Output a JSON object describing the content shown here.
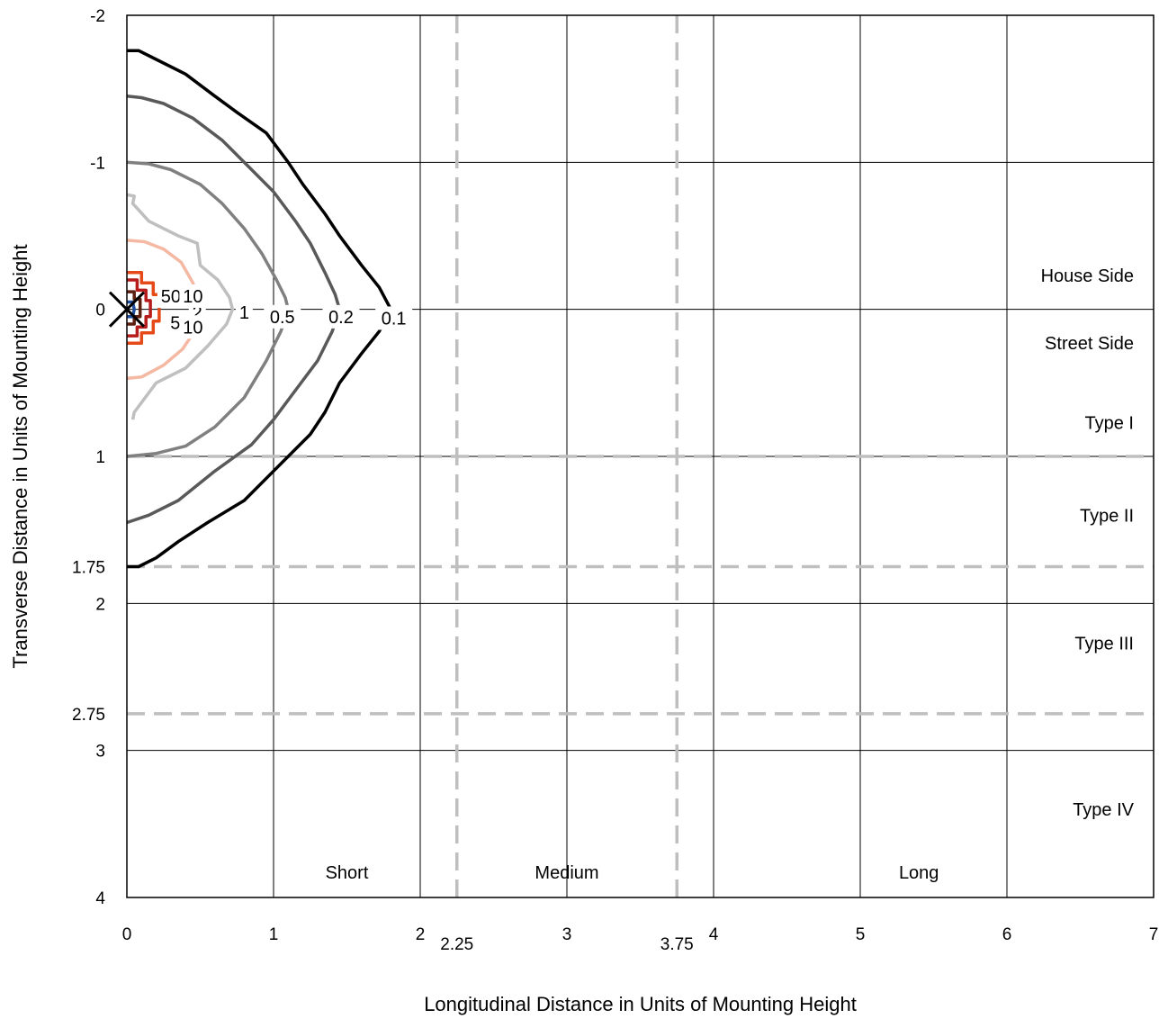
{
  "chart_data": {
    "type": "contour",
    "xlabel": "Longitudinal Distance in Units of Mounting Height",
    "ylabel": "Transverse Distance in Units of Mounting Height",
    "xlim": [
      0,
      7
    ],
    "ylim": [
      -2,
      4
    ],
    "y_inverted": true,
    "grid": true,
    "x_ticks": [
      "0",
      "1",
      "2",
      "3",
      "4",
      "5",
      "6",
      "7"
    ],
    "y_ticks": [
      {
        "value": -2,
        "label": "-2"
      },
      {
        "value": -1,
        "label": "-1"
      },
      {
        "value": 0,
        "label": "0"
      },
      {
        "value": 1,
        "label": "1"
      },
      {
        "value": 1.75,
        "label": "1.75"
      },
      {
        "value": 2,
        "label": "2"
      },
      {
        "value": 2.75,
        "label": "2.75"
      },
      {
        "value": 3,
        "label": "3"
      },
      {
        "value": 4,
        "label": "4"
      }
    ],
    "extra_x_ticks": [
      {
        "value": 2.25,
        "label": "2.25"
      },
      {
        "value": 3.75,
        "label": "3.75"
      }
    ],
    "reference_lines": {
      "vertical": [
        2.25,
        3.75
      ],
      "horizontal": [
        1,
        1.75,
        2.75
      ],
      "color": "#bfbfbf"
    },
    "luminaire_marker": {
      "x": 0,
      "y": 0
    },
    "region_labels": {
      "transverse": [
        {
          "label": "House Side",
          "y": -0.23
        },
        {
          "label": "Street Side",
          "y": 0.23
        },
        {
          "label": "Type I",
          "y": 0.77
        },
        {
          "label": "Type II",
          "y": 1.4
        },
        {
          "label": "Type III",
          "y": 2.27
        },
        {
          "label": "Type IV",
          "y": 3.4
        }
      ],
      "longitudinal": [
        {
          "label": "Short",
          "x": 1.5
        },
        {
          "label": "Medium",
          "x": 3.0
        },
        {
          "label": "Long",
          "x": 5.4
        }
      ]
    },
    "contours": [
      {
        "label": "0.1",
        "color": "#000000",
        "extent_x": 1.8,
        "points": [
          [
            0,
            -1.76
          ],
          [
            0.08,
            -1.76
          ],
          [
            0.2,
            -1.7
          ],
          [
            0.4,
            -1.6
          ],
          [
            0.6,
            -1.45
          ],
          [
            0.75,
            -1.34
          ],
          [
            0.95,
            -1.2
          ],
          [
            1.1,
            -1.0
          ],
          [
            1.2,
            -0.85
          ],
          [
            1.35,
            -0.65
          ],
          [
            1.45,
            -0.5
          ],
          [
            1.6,
            -0.3
          ],
          [
            1.72,
            -0.15
          ],
          [
            1.8,
            0
          ],
          [
            1.72,
            0.15
          ],
          [
            1.6,
            0.3
          ],
          [
            1.45,
            0.5
          ],
          [
            1.35,
            0.7
          ],
          [
            1.25,
            0.85
          ],
          [
            1.0,
            1.1
          ],
          [
            0.8,
            1.3
          ],
          [
            0.55,
            1.45
          ],
          [
            0.35,
            1.58
          ],
          [
            0.2,
            1.69
          ],
          [
            0.08,
            1.75
          ],
          [
            0,
            1.75
          ]
        ]
      },
      {
        "label": "0.2",
        "color": "#595959",
        "extent_x": 1.45,
        "points": [
          [
            0,
            -1.45
          ],
          [
            0.1,
            -1.44
          ],
          [
            0.25,
            -1.4
          ],
          [
            0.45,
            -1.3
          ],
          [
            0.65,
            -1.15
          ],
          [
            0.85,
            -0.95
          ],
          [
            1.0,
            -0.8
          ],
          [
            1.15,
            -0.6
          ],
          [
            1.25,
            -0.45
          ],
          [
            1.35,
            -0.25
          ],
          [
            1.42,
            -0.1
          ],
          [
            1.45,
            0
          ],
          [
            1.4,
            0.15
          ],
          [
            1.3,
            0.35
          ],
          [
            1.15,
            0.55
          ],
          [
            1.0,
            0.75
          ],
          [
            0.85,
            0.92
          ],
          [
            0.6,
            1.1
          ],
          [
            0.35,
            1.3
          ],
          [
            0.15,
            1.4
          ],
          [
            0,
            1.45
          ]
        ]
      },
      {
        "label": "0.5",
        "color": "#808080",
        "extent_x": 1.1,
        "points": [
          [
            0,
            -1.0
          ],
          [
            0.15,
            -0.99
          ],
          [
            0.3,
            -0.95
          ],
          [
            0.5,
            -0.85
          ],
          [
            0.65,
            -0.72
          ],
          [
            0.8,
            -0.55
          ],
          [
            0.92,
            -0.38
          ],
          [
            1.02,
            -0.2
          ],
          [
            1.08,
            -0.08
          ],
          [
            1.1,
            0
          ],
          [
            1.05,
            0.15
          ],
          [
            0.95,
            0.35
          ],
          [
            0.8,
            0.6
          ],
          [
            0.6,
            0.8
          ],
          [
            0.4,
            0.93
          ],
          [
            0.2,
            0.98
          ],
          [
            0,
            1.0
          ]
        ]
      },
      {
        "label": "1",
        "color": "#bfbfbf",
        "extent_x": 0.72,
        "points": [
          [
            0,
            -0.78
          ],
          [
            0.05,
            -0.77
          ],
          [
            0.04,
            -0.72
          ],
          [
            0.15,
            -0.6
          ],
          [
            0.35,
            -0.5
          ],
          [
            0.48,
            -0.45
          ],
          [
            0.5,
            -0.3
          ],
          [
            0.62,
            -0.2
          ],
          [
            0.7,
            -0.08
          ],
          [
            0.72,
            0
          ],
          [
            0.68,
            0.1
          ],
          [
            0.55,
            0.25
          ],
          [
            0.4,
            0.4
          ],
          [
            0.2,
            0.5
          ],
          [
            0.05,
            0.7
          ],
          [
            0.04,
            0.75
          ]
        ]
      },
      {
        "label": "2",
        "color": "#f4b8a3",
        "extent_x": 0.5,
        "points": [
          [
            0,
            -0.47
          ],
          [
            0.12,
            -0.46
          ],
          [
            0.25,
            -0.41
          ],
          [
            0.37,
            -0.32
          ],
          [
            0.45,
            -0.18
          ],
          [
            0.49,
            -0.07
          ],
          [
            0.5,
            0
          ],
          [
            0.46,
            0.15
          ],
          [
            0.38,
            0.27
          ],
          [
            0.25,
            0.38
          ],
          [
            0.1,
            0.46
          ],
          [
            0,
            0.47
          ]
        ]
      },
      {
        "label": "5",
        "color": "#e64a19",
        "extent_x": 0.22,
        "points": [
          [
            0,
            -0.25
          ],
          [
            0.1,
            -0.25
          ],
          [
            0.1,
            -0.18
          ],
          [
            0.18,
            -0.18
          ],
          [
            0.18,
            -0.1
          ],
          [
            0.22,
            -0.1
          ],
          [
            0.22,
            0.08
          ],
          [
            0.18,
            0.08
          ],
          [
            0.18,
            0.16
          ],
          [
            0.1,
            0.16
          ],
          [
            0.1,
            0.23
          ],
          [
            0,
            0.23
          ]
        ]
      },
      {
        "label": "10",
        "color": "#b71c1c",
        "extent_x": 0.16,
        "points": [
          [
            0,
            -0.2
          ],
          [
            0.07,
            -0.2
          ],
          [
            0.07,
            -0.13
          ],
          [
            0.13,
            -0.13
          ],
          [
            0.13,
            -0.06
          ],
          [
            0.16,
            -0.06
          ],
          [
            0.16,
            0.05
          ],
          [
            0.13,
            0.05
          ],
          [
            0.13,
            0.12
          ],
          [
            0.07,
            0.12
          ],
          [
            0.07,
            0.18
          ],
          [
            0,
            0.18
          ]
        ]
      },
      {
        "label": "50",
        "color": "#5d1f10",
        "extent_x": 0.09,
        "points": [
          [
            0,
            -0.12
          ],
          [
            0.05,
            -0.12
          ],
          [
            0.05,
            -0.07
          ],
          [
            0.09,
            -0.07
          ],
          [
            0.09,
            0.05
          ],
          [
            0.05,
            0.05
          ],
          [
            0.05,
            0.1
          ],
          [
            0,
            0.1
          ]
        ]
      },
      {
        "label": "",
        "color": "#1f4e9c",
        "extent_x": 0.05,
        "points": [
          [
            0,
            -0.05
          ],
          [
            0.04,
            -0.05
          ],
          [
            0.05,
            0
          ],
          [
            0.04,
            0.05
          ],
          [
            0,
            0.05
          ]
        ]
      }
    ],
    "contour_labels": [
      {
        "text": "0.1",
        "x": 1.82,
        "y": 0.06
      },
      {
        "text": "0.2",
        "x": 1.46,
        "y": 0.05
      },
      {
        "text": "0.5",
        "x": 1.06,
        "y": 0.05
      },
      {
        "text": "1",
        "x": 0.8,
        "y": 0.02
      },
      {
        "text": "2",
        "x": 0.48,
        "y": 0.02
      },
      {
        "text": "5",
        "x": 0.33,
        "y": 0.09
      },
      {
        "text": "50",
        "x": 0.3,
        "y": -0.09
      },
      {
        "text": "10",
        "x": 0.45,
        "y": -0.09
      },
      {
        "text": "10",
        "x": 0.45,
        "y": 0.12
      }
    ]
  }
}
